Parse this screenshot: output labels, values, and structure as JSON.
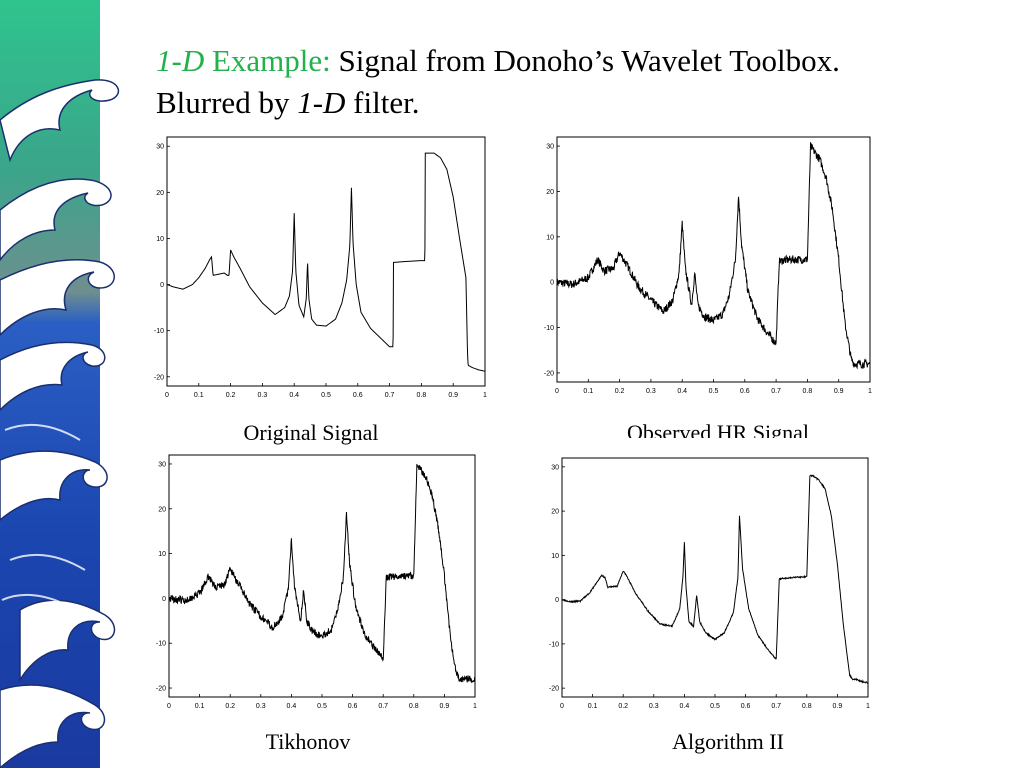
{
  "slide": {
    "title_line1_italic": "1-D",
    "title_line1_green": " Example:",
    "title_line1_rest": " Signal from Donoho’s Wavelet Toolbox.",
    "title_line2_a": "Blurred by ",
    "title_line2_italic": "1-D",
    "title_line2_b": "  filter."
  },
  "colors": {
    "accent_green": "#22b14c",
    "wave_dark": "#1a3fa0",
    "wave_mid": "#2c63c9",
    "wave_light": "#7fb0e8",
    "wave_top": "#2fbf8a",
    "plot_line": "#000000"
  },
  "chart_data": [
    {
      "type": "line",
      "caption": "Original Signal",
      "noise": 0,
      "xlim": [
        0,
        1
      ],
      "ylim": [
        -22,
        32
      ],
      "xticks": [
        "0",
        "0.1",
        "0.2",
        "0.3",
        "0.4",
        "0.5",
        "0.6",
        "0.7",
        "0.8",
        "0.9",
        "1"
      ],
      "yticks": [
        "30",
        "20",
        "10",
        "0",
        "-10",
        "-20"
      ],
      "x": [
        0.0,
        0.02,
        0.05,
        0.08,
        0.1,
        0.12,
        0.135,
        0.14,
        0.145,
        0.18,
        0.19,
        0.195,
        0.2,
        0.21,
        0.23,
        0.26,
        0.3,
        0.34,
        0.37,
        0.385,
        0.395,
        0.4,
        0.405,
        0.415,
        0.43,
        0.438,
        0.442,
        0.446,
        0.455,
        0.47,
        0.5,
        0.53,
        0.55,
        0.565,
        0.575,
        0.58,
        0.585,
        0.595,
        0.61,
        0.64,
        0.67,
        0.7,
        0.711,
        0.712,
        0.75,
        0.8,
        0.811,
        0.812,
        0.84,
        0.86,
        0.88,
        0.9,
        0.92,
        0.94,
        0.945,
        0.947,
        0.96,
        0.98,
        1.0
      ],
      "y": [
        0,
        -0.5,
        -1,
        0,
        1.5,
        3.5,
        5.5,
        6,
        2,
        2.5,
        2,
        2,
        7.5,
        6,
        3.5,
        -0.5,
        -4,
        -6.5,
        -5,
        -2.5,
        3,
        15.5,
        3,
        -4.5,
        -7,
        -3,
        5,
        -3,
        -7.5,
        -8.8,
        -9,
        -7.5,
        -4,
        1,
        8.5,
        21,
        9,
        0,
        -6,
        -9.5,
        -11.5,
        -13.5,
        -13.5,
        4.8,
        5,
        5.2,
        5.2,
        28.5,
        28.5,
        27.5,
        25,
        19,
        10,
        1.5,
        -15,
        -17.5,
        -18,
        -18.5,
        -18.8
      ]
    },
    {
      "type": "line",
      "caption": "Observed HR Signal",
      "noise": 0.9,
      "seed": 7,
      "xlim": [
        0,
        1
      ],
      "ylim": [
        -22,
        32
      ],
      "xticks": [
        "0",
        "0.1",
        "0.2",
        "0.3",
        "0.4",
        "0.5",
        "0.6",
        "0.7",
        "0.8",
        "0.9",
        "1"
      ],
      "yticks": [
        "30",
        "20",
        "10",
        "0",
        "-10",
        "-20"
      ],
      "x": [
        0.0,
        0.05,
        0.1,
        0.13,
        0.15,
        0.18,
        0.2,
        0.23,
        0.26,
        0.3,
        0.34,
        0.37,
        0.39,
        0.4,
        0.41,
        0.43,
        0.44,
        0.45,
        0.47,
        0.5,
        0.53,
        0.55,
        0.57,
        0.58,
        0.59,
        0.61,
        0.64,
        0.67,
        0.7,
        0.71,
        0.72,
        0.75,
        0.8,
        0.81,
        0.82,
        0.84,
        0.86,
        0.88,
        0.9,
        0.92,
        0.94,
        0.95,
        0.96,
        0.98,
        1.0
      ],
      "y": [
        0,
        -0.5,
        1,
        5,
        2.5,
        3,
        6.5,
        3,
        -1,
        -4,
        -6.5,
        -4,
        2,
        13,
        3,
        -5,
        2,
        -5,
        -7.5,
        -8.5,
        -7,
        -3,
        5,
        19,
        8,
        -2,
        -8,
        -11,
        -13.5,
        4.5,
        4.8,
        5,
        5,
        30,
        29,
        27,
        23,
        16,
        5,
        -9,
        -17,
        -18,
        -18,
        -18,
        -18
      ]
    },
    {
      "type": "line",
      "caption": "Tikhonov",
      "noise": 0.8,
      "seed": 19,
      "xlim": [
        0,
        1
      ],
      "ylim": [
        -22,
        32
      ],
      "xticks": [
        "0",
        "0.1",
        "0.2",
        "0.3",
        "0.4",
        "0.5",
        "0.6",
        "0.7",
        "0.8",
        "0.9",
        "1"
      ],
      "yticks": [
        "30",
        "20",
        "10",
        "0",
        "-10",
        "-20"
      ],
      "x": [
        0.0,
        0.05,
        0.1,
        0.13,
        0.15,
        0.18,
        0.2,
        0.23,
        0.26,
        0.3,
        0.34,
        0.37,
        0.39,
        0.4,
        0.41,
        0.43,
        0.44,
        0.45,
        0.47,
        0.5,
        0.53,
        0.55,
        0.57,
        0.58,
        0.59,
        0.61,
        0.64,
        0.67,
        0.7,
        0.71,
        0.72,
        0.75,
        0.8,
        0.81,
        0.82,
        0.84,
        0.86,
        0.88,
        0.9,
        0.92,
        0.94,
        0.95,
        0.96,
        0.98,
        1.0
      ],
      "y": [
        0,
        -0.5,
        1,
        5,
        2.5,
        3,
        6.5,
        3,
        -1,
        -4,
        -6.5,
        -4,
        2,
        13,
        3,
        -5,
        2,
        -5,
        -7.5,
        -8.5,
        -7,
        -3,
        5,
        19,
        8,
        -2,
        -8,
        -11,
        -13.5,
        4.5,
        4.8,
        5,
        5,
        30,
        29,
        27,
        23,
        16,
        5,
        -9,
        -17,
        -18,
        -18,
        -18,
        -18
      ]
    },
    {
      "type": "line",
      "caption": "Algorithm II",
      "noise": 0.15,
      "seed": 3,
      "xlim": [
        0,
        1
      ],
      "ylim": [
        -22,
        32
      ],
      "xticks": [
        "0",
        "0.1",
        "0.2",
        "0.3",
        "0.4",
        "0.5",
        "0.6",
        "0.7",
        "0.8",
        "0.9",
        "1"
      ],
      "yticks": [
        "30",
        "20",
        "10",
        "0",
        "-10",
        "-20"
      ],
      "x": [
        0.0,
        0.03,
        0.06,
        0.09,
        0.11,
        0.13,
        0.14,
        0.15,
        0.18,
        0.2,
        0.21,
        0.24,
        0.28,
        0.32,
        0.36,
        0.385,
        0.395,
        0.4,
        0.405,
        0.415,
        0.43,
        0.44,
        0.45,
        0.47,
        0.5,
        0.53,
        0.56,
        0.575,
        0.58,
        0.59,
        0.61,
        0.64,
        0.67,
        0.7,
        0.71,
        0.72,
        0.75,
        0.8,
        0.81,
        0.82,
        0.84,
        0.86,
        0.88,
        0.9,
        0.92,
        0.94,
        0.95,
        0.96,
        0.98,
        1.0
      ],
      "y": [
        0,
        -0.5,
        -0.3,
        1.5,
        3.5,
        5.5,
        5,
        2.8,
        3,
        6.5,
        5.5,
        1.5,
        -2.5,
        -5.5,
        -6,
        -2,
        5,
        13,
        3,
        -5,
        -6,
        1,
        -5,
        -7.5,
        -9,
        -7.5,
        -3,
        5,
        19,
        7,
        -2,
        -8,
        -11,
        -13.5,
        4.6,
        4.8,
        5,
        5.2,
        28,
        28,
        27,
        25,
        19,
        8,
        -6,
        -17,
        -18,
        -18,
        -18.5,
        -18.8
      ]
    }
  ]
}
